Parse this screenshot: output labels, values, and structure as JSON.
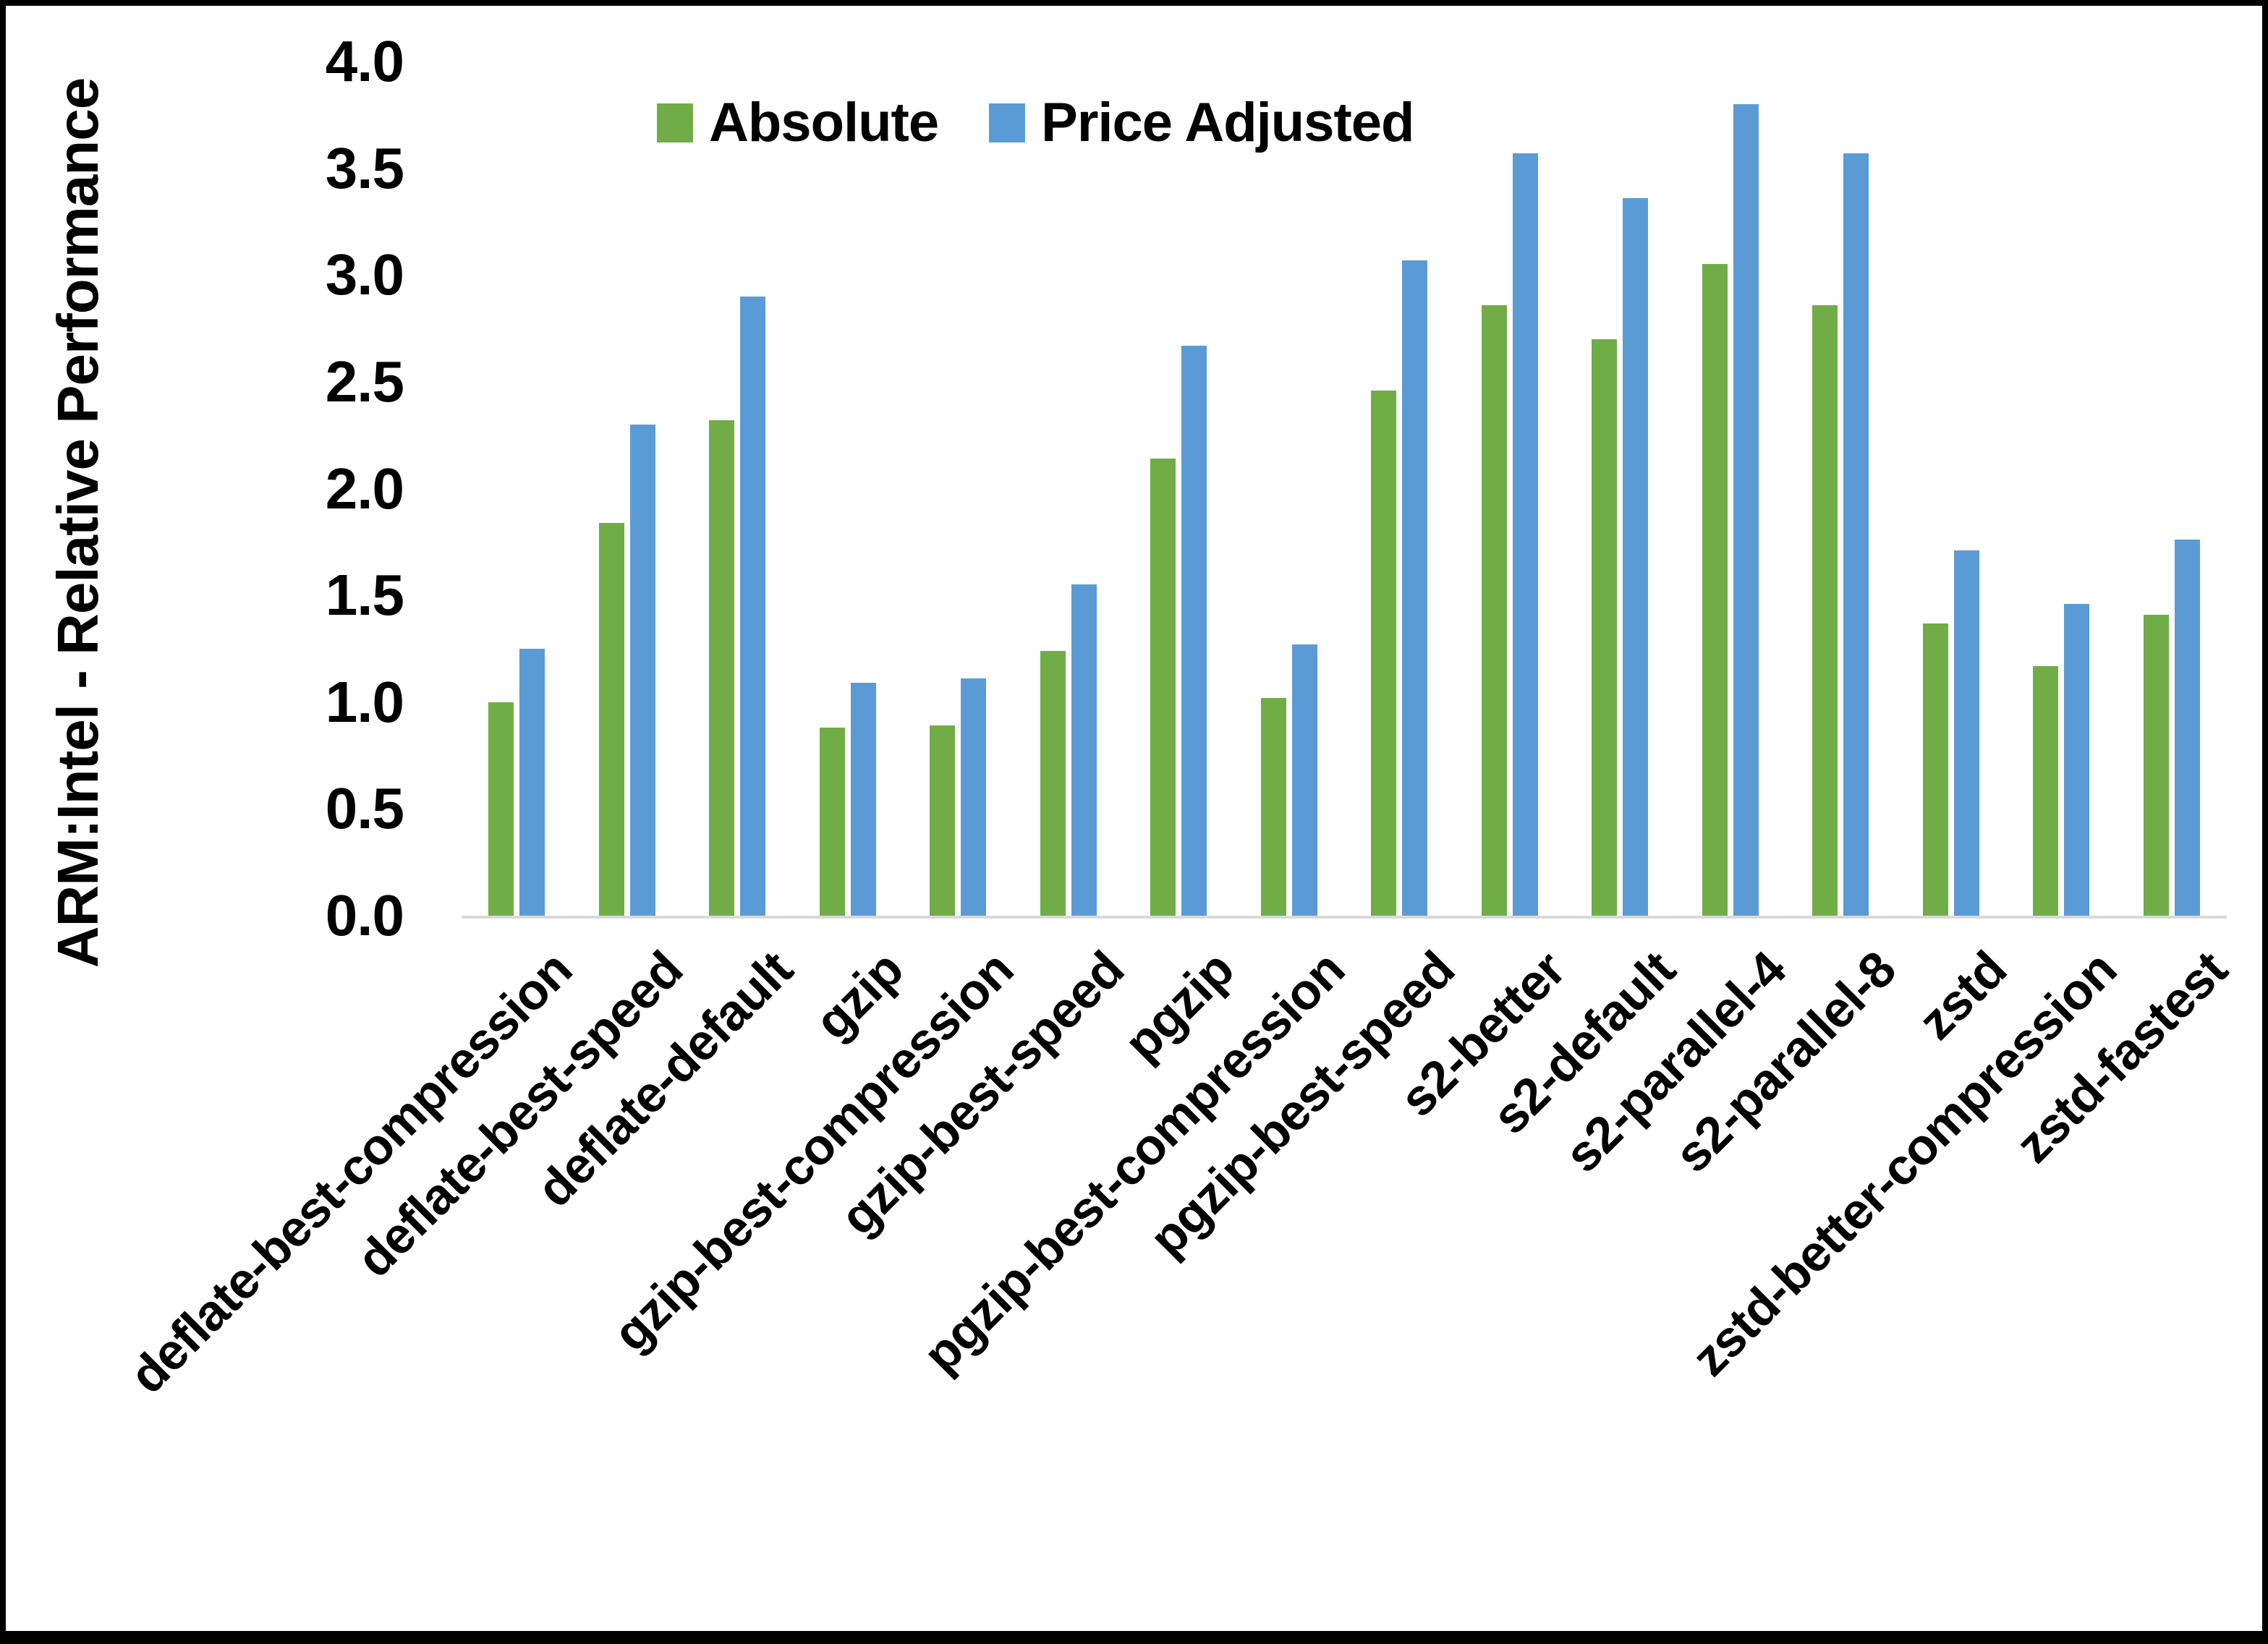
{
  "chart_data": {
    "type": "bar",
    "title": "",
    "ylabel": "ARM:Intel - Relative Performance",
    "xlabel": "",
    "ylim": [
      0.0,
      4.0
    ],
    "ytick_step": 0.5,
    "yticks": [
      "0.0",
      "0.5",
      "1.0",
      "1.5",
      "2.0",
      "2.5",
      "3.0",
      "3.5",
      "4.0"
    ],
    "grid": false,
    "legend_position": "top-center",
    "categories": [
      "deflate-best-compression",
      "deflate-best-speed",
      "deflate-default",
      "gzip",
      "gzip-best-compression",
      "gzip-best-speed",
      "pgzip",
      "pgzip-best-compression",
      "pgzip-best-speed",
      "s2-better",
      "s2-default",
      "s2-parallel-4",
      "s2-parallel-8",
      "zstd",
      "zstd-better-compression",
      "zstd-fastest"
    ],
    "series": [
      {
        "name": "Absolute",
        "color": "#70AD47",
        "values": [
          1.0,
          1.84,
          2.32,
          0.88,
          0.89,
          1.24,
          2.14,
          1.02,
          2.46,
          2.86,
          2.7,
          3.05,
          2.86,
          1.37,
          1.17,
          1.41
        ]
      },
      {
        "name": "Price Adjusted",
        "color": "#5B9BD5",
        "values": [
          1.25,
          2.3,
          2.9,
          1.09,
          1.11,
          1.55,
          2.67,
          1.27,
          3.07,
          3.57,
          3.36,
          3.8,
          3.57,
          1.71,
          1.46,
          1.76
        ]
      }
    ],
    "axis_line_color": "#D9D9D9",
    "text_color": "#000000",
    "frame_color": "#000000"
  }
}
